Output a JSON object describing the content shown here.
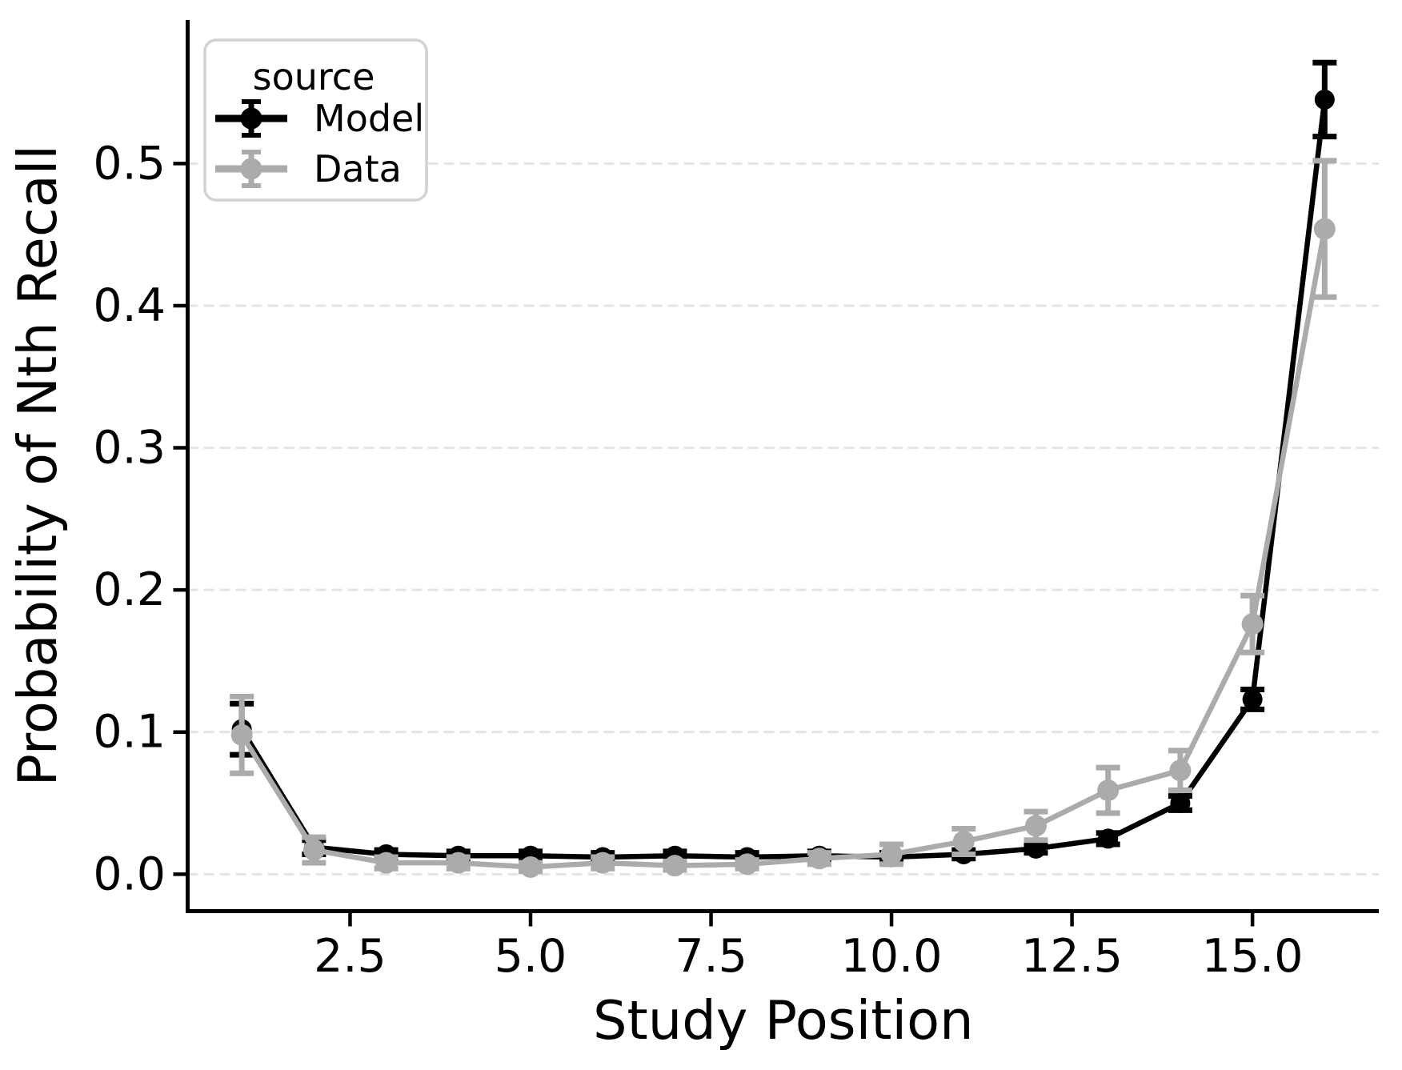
{
  "chart_data": {
    "type": "line",
    "title": "",
    "xlabel": "Study Position",
    "ylabel": "Probability of Nth Recall",
    "x": [
      1,
      2,
      3,
      4,
      5,
      6,
      7,
      8,
      9,
      10,
      11,
      12,
      13,
      14,
      15,
      16
    ],
    "xlim": [
      0.25,
      16.75
    ],
    "ylim": [
      -0.026,
      0.601
    ],
    "xticks": [
      2.5,
      5.0,
      7.5,
      10.0,
      12.5,
      15.0
    ],
    "xtick_labels": [
      "2.5",
      "5.0",
      "7.5",
      "10.0",
      "12.5",
      "15.0"
    ],
    "yticks": [
      0.0,
      0.1,
      0.2,
      0.3,
      0.4,
      0.5
    ],
    "ytick_labels": [
      "0.0",
      "0.1",
      "0.2",
      "0.3",
      "0.4",
      "0.5"
    ],
    "grid": "horizontal-dashed",
    "legend": {
      "title": "source",
      "position": "upper-left",
      "entries": [
        {
          "label": "Model",
          "color": "#000000"
        },
        {
          "label": "Data",
          "color": "#ababab"
        }
      ]
    },
    "series": [
      {
        "name": "Model",
        "color": "#000000",
        "marker": "circle",
        "values": [
          0.102,
          0.019,
          0.014,
          0.013,
          0.013,
          0.012,
          0.013,
          0.012,
          0.013,
          0.012,
          0.014,
          0.018,
          0.025,
          0.05,
          0.123,
          0.545
        ],
        "errors": [
          0.018,
          0.005,
          0.003,
          0.003,
          0.003,
          0.003,
          0.003,
          0.003,
          0.003,
          0.003,
          0.003,
          0.003,
          0.004,
          0.005,
          0.007,
          0.026
        ]
      },
      {
        "name": "Data",
        "color": "#ababab",
        "marker": "circle",
        "values": [
          0.098,
          0.017,
          0.008,
          0.008,
          0.005,
          0.008,
          0.006,
          0.007,
          0.011,
          0.014,
          0.023,
          0.034,
          0.059,
          0.073,
          0.176,
          0.454
        ],
        "errors": [
          0.027,
          0.009,
          0.004,
          0.004,
          0.003,
          0.004,
          0.003,
          0.003,
          0.004,
          0.007,
          0.009,
          0.01,
          0.016,
          0.014,
          0.02,
          0.048
        ]
      }
    ],
    "colors": {
      "grid": "#e4e4e4",
      "spine": "#000000",
      "legend_border": "#d2d2d2",
      "background": "#ffffff"
    }
  }
}
